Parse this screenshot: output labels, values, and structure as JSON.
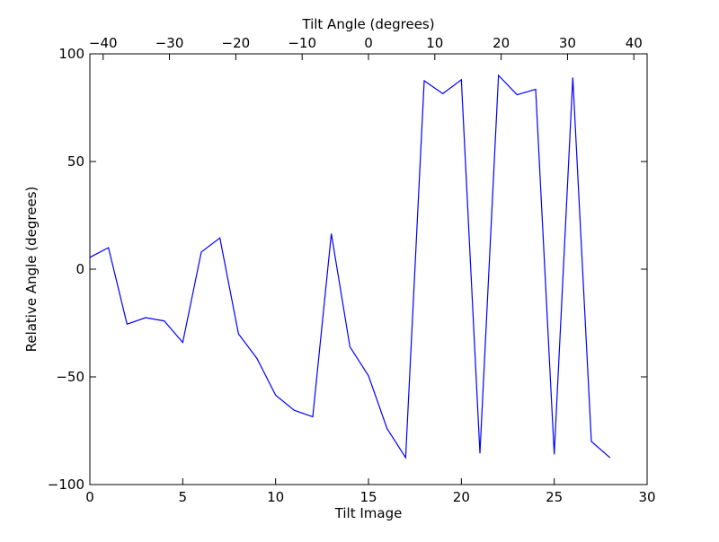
{
  "chart_data": {
    "type": "line",
    "title": "",
    "xlabel": "Tilt Image",
    "ylabel": "Relative Angle (degrees)",
    "top_xlabel": "Tilt Angle (degrees)",
    "xlim": [
      0,
      30
    ],
    "ylim": [
      -100,
      100
    ],
    "top_xlim": [
      -42,
      42
    ],
    "x_ticks": [
      {
        "value": 0,
        "label": "0"
      },
      {
        "value": 5,
        "label": "5"
      },
      {
        "value": 10,
        "label": "10"
      },
      {
        "value": 15,
        "label": "15"
      },
      {
        "value": 20,
        "label": "20"
      },
      {
        "value": 25,
        "label": "25"
      },
      {
        "value": 30,
        "label": "30"
      }
    ],
    "y_ticks": [
      {
        "value": -100,
        "label": "−100"
      },
      {
        "value": -50,
        "label": "−50"
      },
      {
        "value": 0,
        "label": "0"
      },
      {
        "value": 50,
        "label": "50"
      },
      {
        "value": 100,
        "label": "100"
      }
    ],
    "top_x_ticks": [
      {
        "value": -40,
        "label": "−40"
      },
      {
        "value": -30,
        "label": "−30"
      },
      {
        "value": -20,
        "label": "−20"
      },
      {
        "value": -10,
        "label": "−10"
      },
      {
        "value": 0,
        "label": "0"
      },
      {
        "value": 10,
        "label": "10"
      },
      {
        "value": 20,
        "label": "20"
      },
      {
        "value": 30,
        "label": "30"
      },
      {
        "value": 40,
        "label": "40"
      }
    ],
    "grid": false,
    "series": [
      {
        "color": "#0000ff",
        "x": [
          0,
          1,
          2,
          3,
          4,
          5,
          6,
          7,
          8,
          9,
          10,
          11,
          12,
          13,
          14,
          15,
          16,
          17,
          18,
          19,
          20,
          21,
          22,
          23,
          24,
          25,
          26,
          27,
          28
        ],
        "y": [
          5.5,
          10,
          -25.5,
          -22.5,
          -24,
          -34,
          8,
          14.5,
          -30,
          -41.5,
          -58.5,
          -65.5,
          -68.5,
          16.5,
          -36,
          -49.5,
          -74,
          -87.5,
          87.5,
          81.5,
          88,
          -85.5,
          90,
          81,
          83.5,
          -86,
          89,
          -80,
          -87.5
        ]
      }
    ]
  }
}
